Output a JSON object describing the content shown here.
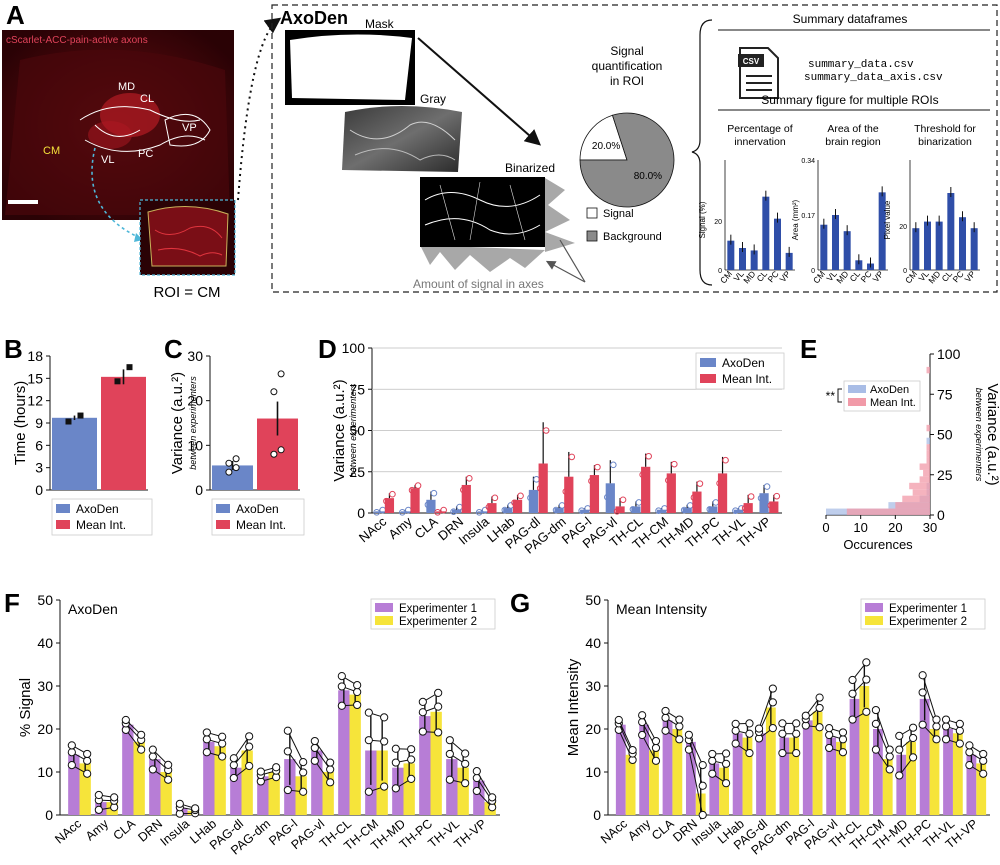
{
  "colors": {
    "axoden": "#6a86c8",
    "axoden_dark": "#2f4ea8",
    "meanint": "#e0435a",
    "exp1": "#b77dd6",
    "exp2": "#f6e43a",
    "slice_signal": "#ffffff",
    "slice_background": "#8a8a8a"
  },
  "panel_a": {
    "letter": "A",
    "micro_title": "cScarlet-ACC-pain-active axons",
    "region_labels": [
      "MD",
      "CL",
      "VP",
      "CM",
      "VL",
      "PC"
    ],
    "roi_caption": "ROI = CM",
    "pipeline_title": "AxoDen",
    "mask_label": "Mask",
    "gray_label": "Gray",
    "binarized_label": "Binarized",
    "axes_caption": "Amount of signal in axes",
    "quant_title": [
      "Signal",
      "quantification",
      "in ROI"
    ],
    "pie": {
      "type": "pie",
      "labels": [
        "Signal",
        "Background"
      ],
      "values": [
        20.0,
        80.0
      ],
      "slice_labels": [
        "20.0%",
        "80.0%"
      ]
    },
    "summary_df_title": "Summary dataframes",
    "csv_icon_text": "CSV",
    "csv_files": [
      "summary_data.csv",
      "summary_data_axis.csv"
    ],
    "summary_fig_title": "Summary figure for multiple ROIs",
    "minis": [
      {
        "title": [
          "Percentage of",
          "innervation"
        ],
        "ylabel": "Signal (%)",
        "yticks": [
          "0",
          "20"
        ],
        "ylim": [
          0,
          45
        ],
        "categories": [
          "CM",
          "VL",
          "MD",
          "CL",
          "PC",
          "VP"
        ],
        "values": [
          12,
          9,
          8,
          30,
          21,
          7
        ]
      },
      {
        "title": [
          "Area of the",
          "brain region"
        ],
        "ylabel": "Area (mm²)",
        "yticks": [
          "0",
          "0.17",
          "0.34"
        ],
        "ylim": [
          0,
          0.34
        ],
        "categories": [
          "CM",
          "VL",
          "MD",
          "CL",
          "PC",
          "VP"
        ],
        "values": [
          0.14,
          0.17,
          0.12,
          0.03,
          0.02,
          0.24
        ]
      },
      {
        "title": [
          "Threshold for",
          "binarization"
        ],
        "ylabel": "Pixel value",
        "yticks": [
          "0",
          "20"
        ],
        "ylim": [
          0,
          50
        ],
        "categories": [
          "CM",
          "VL",
          "MD",
          "CL",
          "PC",
          "VP"
        ],
        "values": [
          19,
          22,
          22,
          35,
          24,
          19
        ]
      }
    ]
  },
  "chart_data": [
    {
      "panel": "B",
      "type": "bar",
      "categories": [
        "AxoDen",
        "Mean Int."
      ],
      "values": [
        9.7,
        15.2
      ],
      "errors": [
        0.3,
        1.0
      ],
      "points": [
        [
          9.2,
          10.0
        ],
        [
          14.6,
          16.5
        ]
      ],
      "ylabel": "Time (hours)",
      "yticks": [
        0,
        3,
        6,
        9,
        12,
        15,
        18
      ],
      "ylim": [
        0,
        18
      ],
      "legend": [
        "AxoDen",
        "Mean Int."
      ]
    },
    {
      "panel": "C",
      "type": "bar",
      "categories": [
        "AxoDen",
        "Mean Int."
      ],
      "values": [
        5.5,
        16.0
      ],
      "errors": [
        1.0,
        3.8
      ],
      "points": [
        [
          4.0,
          5.0,
          6.0,
          7.0
        ],
        [
          8.0,
          9.0,
          22.0,
          26.0
        ]
      ],
      "ylabel": "Variance (a.u.²)",
      "ylabel_sub": "between experimenters",
      "yticks": [
        0,
        10,
        20,
        30
      ],
      "ylim": [
        0,
        30
      ],
      "legend": [
        "AxoDen",
        "Mean Int."
      ]
    },
    {
      "panel": "D",
      "type": "bar",
      "categories": [
        "NAcc",
        "Amy",
        "CLA",
        "DRN",
        "Insula",
        "LHab",
        "PAG-dl",
        "PAG-dm",
        "PAG-l",
        "PAG-vl",
        "TH-CL",
        "TH-CM",
        "TH-MD",
        "TH-PC",
        "TH-VL",
        "TH-VP"
      ],
      "series": [
        {
          "name": "AxoDen",
          "values": [
            1,
            1,
            8,
            2,
            1,
            3,
            14,
            3,
            2,
            18,
            4,
            2,
            3,
            4,
            2,
            12
          ],
          "errors": [
            1,
            1,
            5,
            2,
            1,
            2,
            8,
            2,
            1,
            14,
            3,
            1,
            2,
            3,
            1,
            5
          ]
        },
        {
          "name": "Mean Int.",
          "values": [
            9,
            15,
            1,
            17,
            6,
            8,
            30,
            22,
            23,
            4,
            28,
            24,
            13,
            24,
            6,
            7
          ],
          "errors": [
            3,
            2,
            1,
            5,
            4,
            3,
            25,
            15,
            6,
            5,
            8,
            7,
            6,
            10,
            5,
            4
          ]
        }
      ],
      "ylabel": "Variance (a.u.²)",
      "ylabel_sub": "between experimenters",
      "yticks": [
        0,
        25,
        50,
        75,
        100
      ],
      "ylim": [
        0,
        100
      ],
      "legend": [
        "AxoDen",
        "Mean Int."
      ]
    },
    {
      "panel": "E",
      "type": "bar",
      "orientation": "horizontal histogram",
      "xlabel": "Occurences",
      "xticks": [
        0,
        10,
        20,
        30
      ],
      "xlim": [
        0,
        30
      ],
      "ylabel": "Variance (a.u.²)",
      "ylabel_sub": "between experimenters",
      "yticks": [
        0,
        25,
        50,
        75,
        100
      ],
      "ylim": [
        0,
        100
      ],
      "bin_width": 4,
      "series": [
        {
          "name": "AxoDen",
          "counts": [
            30,
            12,
            3,
            1,
            1,
            0,
            0,
            0,
            0,
            0,
            0,
            1,
            0,
            0,
            0,
            0,
            0,
            0,
            0,
            0,
            0,
            0,
            0,
            0,
            0
          ]
        },
        {
          "name": "Mean Int.",
          "counts": [
            24,
            10,
            8,
            5,
            6,
            3,
            2,
            3,
            1,
            1,
            1,
            0,
            0,
            1,
            0,
            0,
            0,
            0,
            0,
            0,
            0,
            0,
            1,
            0,
            0
          ]
        }
      ],
      "significance": "**",
      "legend": [
        "AxoDen",
        "Mean Int."
      ]
    },
    {
      "panel": "F",
      "type": "bar",
      "title": "AxoDen",
      "categories": [
        "NAcc",
        "Amy",
        "CLA",
        "DRN",
        "Insula",
        "LHab",
        "PAG-dl",
        "PAG-dm",
        "PAG-l",
        "PAG-vl",
        "TH-CL",
        "TH-CM",
        "TH-MD",
        "TH-PC",
        "TH-VL",
        "TH-VP"
      ],
      "series": [
        {
          "name": "Experimenter 1",
          "values": [
            14,
            3,
            21,
            13,
            1.5,
            17,
            11,
            9,
            13,
            15,
            29,
            15,
            11,
            23,
            13,
            8
          ],
          "errors": [
            2,
            1.5,
            1,
            2,
            1,
            2,
            2,
            1,
            6,
            2,
            3,
            8,
            4,
            3,
            4,
            2
          ]
        },
        {
          "name": "Experimenter 2",
          "values": [
            12,
            3,
            17,
            10,
            1,
            16,
            15,
            10,
            9,
            10,
            28,
            15,
            12,
            24,
            11,
            3
          ],
          "errors": [
            2,
            1,
            1.5,
            1.5,
            0.5,
            2,
            3,
            1,
            3,
            2,
            2,
            7,
            3,
            4,
            3,
            1
          ]
        }
      ],
      "ylabel": "% Signal",
      "yticks": [
        0,
        10,
        20,
        30,
        40,
        50
      ],
      "ylim": [
        0,
        50
      ],
      "legend": [
        "Experimenter 1",
        "Experimenter 2"
      ]
    },
    {
      "panel": "G",
      "type": "bar",
      "title": "Mean Intensity",
      "categories": [
        "NAcc",
        "Amy",
        "CLA",
        "DRN",
        "Insula",
        "LHab",
        "PAG-dl",
        "PAG-dm",
        "PAG-l",
        "PAG-vl",
        "TH-CL",
        "TH-CM",
        "TH-MD",
        "TH-PC",
        "TH-VL",
        "TH-VP"
      ],
      "series": [
        {
          "name": "Experimenter 1",
          "values": [
            21,
            21,
            22,
            17,
            12,
            19,
            19,
            18,
            22,
            18,
            27,
            20,
            14,
            27,
            20,
            14
          ],
          "errors": [
            1,
            2,
            2,
            1.5,
            2,
            2,
            1,
            3,
            1,
            2,
            4,
            4,
            4,
            5,
            2,
            2
          ]
        },
        {
          "name": "Experimenter 2",
          "values": [
            14,
            15,
            20,
            5,
            11,
            18,
            25,
            18,
            24,
            17,
            30,
            13,
            17,
            20,
            19,
            12
          ],
          "errors": [
            1,
            2,
            2,
            6,
            3,
            3,
            4,
            3,
            3,
            2,
            5,
            2,
            3,
            2,
            2,
            2
          ]
        }
      ],
      "ylabel": "Mean Intensity",
      "yticks": [
        0,
        10,
        20,
        30,
        40,
        50
      ],
      "ylim": [
        0,
        50
      ],
      "legend": [
        "Experimenter 1",
        "Experimenter 2"
      ]
    }
  ]
}
